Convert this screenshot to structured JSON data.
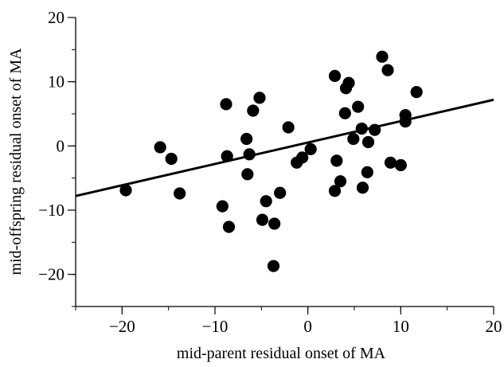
{
  "chart_data": {
    "type": "scatter",
    "title": "",
    "xlabel": "mid-parent residual onset of MA",
    "ylabel": "mid-offspring residual onset of MA",
    "xlim": [
      -25,
      20
    ],
    "ylim": [
      -25,
      20
    ],
    "xticks_major": [
      -20,
      -10,
      0,
      10,
      20
    ],
    "yticks_major": [
      -20,
      -10,
      0,
      10,
      20
    ],
    "x_tick_labels": [
      "−20",
      "−10",
      "0",
      "10",
      "20"
    ],
    "y_tick_labels": [
      "−20",
      "−10",
      "0",
      "10",
      "20"
    ],
    "minor_tick_step": 5,
    "grid": false,
    "legend": "none",
    "marker_color": "#000000",
    "line_color": "#000000",
    "regression_line": {
      "slope": 0.333,
      "intercept": 0.53
    },
    "points": [
      {
        "x": -19.6,
        "y": -6.9
      },
      {
        "x": -15.9,
        "y": -0.2
      },
      {
        "x": -14.7,
        "y": -2.0
      },
      {
        "x": -13.8,
        "y": -7.4
      },
      {
        "x": -9.2,
        "y": -9.4
      },
      {
        "x": -8.8,
        "y": 6.5
      },
      {
        "x": -8.7,
        "y": -1.6
      },
      {
        "x": -8.5,
        "y": -12.6
      },
      {
        "x": -6.6,
        "y": 1.1
      },
      {
        "x": -6.5,
        "y": -4.4
      },
      {
        "x": -6.3,
        "y": -1.3
      },
      {
        "x": -5.9,
        "y": 5.5
      },
      {
        "x": -5.2,
        "y": 7.5
      },
      {
        "x": -4.9,
        "y": -11.5
      },
      {
        "x": -4.5,
        "y": -8.6
      },
      {
        "x": -3.7,
        "y": -18.7
      },
      {
        "x": -3.6,
        "y": -12.1
      },
      {
        "x": -3.0,
        "y": -7.3
      },
      {
        "x": -2.1,
        "y": 2.9
      },
      {
        "x": -1.2,
        "y": -2.6
      },
      {
        "x": -0.6,
        "y": -1.8
      },
      {
        "x": 0.3,
        "y": -0.5
      },
      {
        "x": 2.9,
        "y": 10.9
      },
      {
        "x": 2.9,
        "y": -7.0
      },
      {
        "x": 3.1,
        "y": -2.3
      },
      {
        "x": 3.5,
        "y": -5.5
      },
      {
        "x": 4.0,
        "y": 5.1
      },
      {
        "x": 4.1,
        "y": 9.0
      },
      {
        "x": 4.4,
        "y": 9.8
      },
      {
        "x": 4.9,
        "y": 1.1
      },
      {
        "x": 5.4,
        "y": 6.1
      },
      {
        "x": 5.8,
        "y": 2.7
      },
      {
        "x": 5.9,
        "y": -6.5
      },
      {
        "x": 6.4,
        "y": -4.1
      },
      {
        "x": 6.5,
        "y": 0.6
      },
      {
        "x": 7.2,
        "y": 2.5
      },
      {
        "x": 8.0,
        "y": 13.9
      },
      {
        "x": 8.6,
        "y": 11.8
      },
      {
        "x": 8.9,
        "y": -2.6
      },
      {
        "x": 10.0,
        "y": -3.0
      },
      {
        "x": 10.5,
        "y": 4.8
      },
      {
        "x": 10.5,
        "y": 3.8
      },
      {
        "x": 11.7,
        "y": 8.4
      }
    ]
  }
}
